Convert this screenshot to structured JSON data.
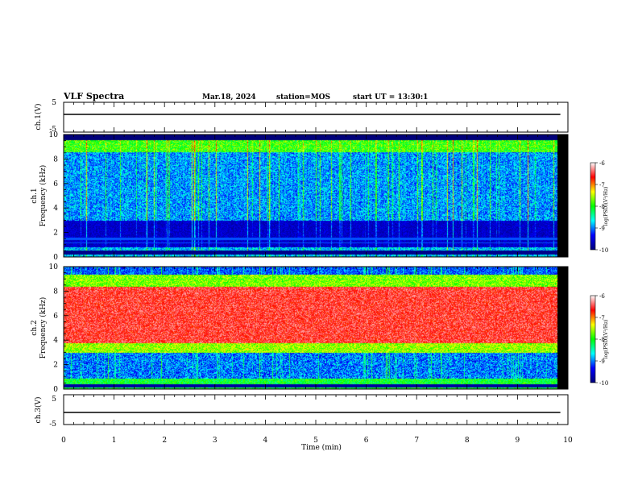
{
  "header": {
    "title": "VLF Spectra",
    "date": "Mar.18, 2024",
    "station": "station=MOS",
    "start": "start UT =  13:30:1"
  },
  "colors": {
    "colormap": [
      "#00007a",
      "#0000ff",
      "#00ffff",
      "#00ff00",
      "#ffff00",
      "#ff0000",
      "#ffffff"
    ]
  },
  "chart_data": [
    {
      "type": "line",
      "ylabel": "ch.1(V)",
      "ylim": [
        -5,
        5
      ],
      "yticks": [
        "5",
        "-5"
      ],
      "series": [
        {
          "x": [
            0,
            9.85
          ],
          "values": [
            0,
            0
          ]
        }
      ]
    },
    {
      "type": "heatmap",
      "ylabel": "ch.1\nFrequency (kHz)",
      "xlim": [
        0,
        10
      ],
      "ylim": [
        0,
        10
      ],
      "yticks": [
        "0",
        "2",
        "4",
        "6",
        "8",
        "10"
      ],
      "colorbar": {
        "label": "log(PSD)(V²/Hz)",
        "range": [
          -10,
          -6
        ],
        "ticks": [
          "-6",
          "-7",
          "-8",
          "-9",
          "-10"
        ]
      }
    },
    {
      "type": "heatmap",
      "ylabel": "ch.2\nFrequency (kHz)",
      "xlim": [
        0,
        10
      ],
      "ylim": [
        0,
        10
      ],
      "yticks": [
        "0",
        "2",
        "4",
        "6",
        "8",
        "10"
      ],
      "colorbar": {
        "label": "log(PSD)(V²/Hz)",
        "range": [
          -10,
          -6
        ],
        "ticks": [
          "-6",
          "-7",
          "-8",
          "-9",
          "-10"
        ]
      }
    },
    {
      "type": "line",
      "ylabel": "ch.3(V)",
      "ylim": [
        -5,
        5
      ],
      "yticks": [
        "5",
        "-5"
      ],
      "xlabel": "Time (min)",
      "xlim": [
        0,
        10
      ],
      "xticks": [
        "0",
        "1",
        "2",
        "3",
        "4",
        "5",
        "6",
        "7",
        "8",
        "9",
        "10"
      ],
      "series": [
        {
          "x": [
            0,
            9.85
          ],
          "values": [
            0,
            0
          ]
        }
      ]
    }
  ]
}
